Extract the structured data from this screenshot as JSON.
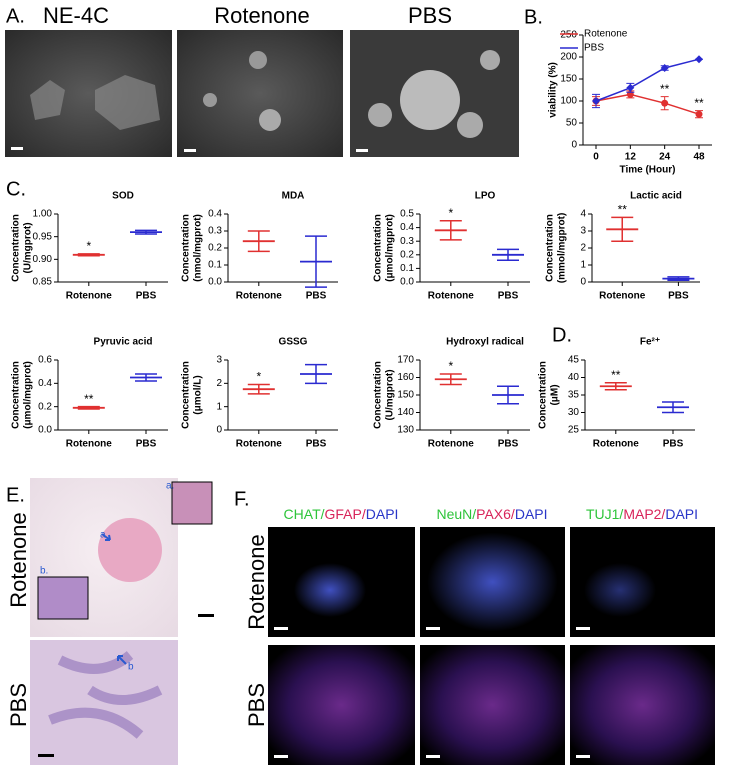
{
  "figure": {
    "panel_labels": [
      "A.",
      "B.",
      "C.",
      "D.",
      "E.",
      "F."
    ],
    "a_titles": [
      "NE-4C",
      "Rotenone",
      "PBS"
    ],
    "e_rows": [
      "Rotenone",
      "PBS"
    ],
    "e_marks": [
      "a.",
      "b.",
      "a",
      "b"
    ],
    "f_headers": [
      [
        {
          "text": "CHAT/",
          "color": "#2ec43a"
        },
        {
          "text": "GFAP/",
          "color": "#d8245a"
        },
        {
          "text": "DAPI",
          "color": "#2a36c8"
        }
      ],
      [
        {
          "text": "NeuN/",
          "color": "#2ec43a"
        },
        {
          "text": "PAX6/",
          "color": "#d8245a"
        },
        {
          "text": "DAPI",
          "color": "#2a36c8"
        }
      ],
      [
        {
          "text": "TUJ1/",
          "color": "#2ec43a"
        },
        {
          "text": "MAP2/",
          "color": "#d8245a"
        },
        {
          "text": "DAPI",
          "color": "#2a36c8"
        }
      ]
    ],
    "f_rows": [
      "Rotenone",
      "PBS"
    ]
  },
  "chart_data": [
    {
      "type": "line",
      "xlabel": "Time (Hour)",
      "ylabel": "viability (%)",
      "categories": [
        "0",
        "12",
        "24",
        "48"
      ],
      "ylim": [
        0,
        250
      ],
      "yticks": [
        0,
        50,
        100,
        150,
        200,
        250
      ],
      "legend": "top-left",
      "series": [
        {
          "name": "Rotenone",
          "color": "#e03030",
          "marker": "circle",
          "values": [
            100,
            115,
            95,
            70
          ],
          "errors": [
            10,
            8,
            15,
            8
          ],
          "annotations": [
            null,
            null,
            "**",
            "**"
          ]
        },
        {
          "name": "PBS",
          "color": "#2a2ad0",
          "marker": "diamond",
          "values": [
            100,
            130,
            175,
            195
          ],
          "errors": [
            15,
            10,
            5,
            0
          ],
          "annotations": [
            null,
            null,
            null,
            null
          ]
        }
      ]
    },
    {
      "type": "errorbar",
      "title": "SOD",
      "ylabel": [
        "Concentration",
        "(U/mgprot)"
      ],
      "categories": [
        "Rotenone",
        "PBS"
      ],
      "colors": [
        "#e03030",
        "#2a2ad0"
      ],
      "values": [
        0.91,
        0.96
      ],
      "errors": [
        0.002,
        0.004
      ],
      "significance": [
        "*",
        null
      ],
      "ylim": [
        0.85,
        1.0
      ],
      "yticks": [
        0.85,
        {
          "value": 0.9,
          "label": "0.90"
        },
        0.95,
        {
          "value": 1.0,
          "label": "1.00"
        }
      ]
    },
    {
      "type": "errorbar",
      "title": "MDA",
      "ylabel": [
        "Concentration",
        "(nmol/mgprot)"
      ],
      "categories": [
        "Rotenone",
        "PBS"
      ],
      "colors": [
        "#e03030",
        "#2a2ad0"
      ],
      "values": [
        0.24,
        0.12
      ],
      "errors": [
        0.06,
        0.15
      ],
      "significance": [
        null,
        null
      ],
      "ylim": [
        0,
        0.4
      ],
      "yticks": [
        {
          "value": 0,
          "label": "0.0"
        },
        0.1,
        0.2,
        0.3,
        0.4
      ]
    },
    {
      "type": "errorbar",
      "title": "LPO",
      "ylabel": [
        "Concentration",
        "(μmol/mgprot)"
      ],
      "categories": [
        "Rotenone",
        "PBS"
      ],
      "colors": [
        "#e03030",
        "#2a2ad0"
      ],
      "values": [
        0.38,
        0.2
      ],
      "errors": [
        0.07,
        0.04
      ],
      "significance": [
        "*",
        null
      ],
      "ylim": [
        0,
        0.5
      ],
      "yticks": [
        {
          "value": 0,
          "label": "0.0"
        },
        0.1,
        0.2,
        0.3,
        0.4,
        0.5
      ]
    },
    {
      "type": "errorbar",
      "title": "Lactic acid",
      "ylabel": [
        "Concentration",
        "(mmol/mgprot)"
      ],
      "categories": [
        "Rotenone",
        "PBS"
      ],
      "colors": [
        "#e03030",
        "#2a2ad0"
      ],
      "values": [
        3.1,
        0.2
      ],
      "errors": [
        0.7,
        0.1
      ],
      "significance": [
        "**",
        null
      ],
      "ylim": [
        0,
        4
      ],
      "yticks": [
        0,
        1,
        2,
        3,
        4
      ]
    },
    {
      "type": "errorbar",
      "title": "Pyruvic acid",
      "ylabel": [
        "Concentration",
        "(μmol/mgprot)"
      ],
      "categories": [
        "Rotenone",
        "PBS"
      ],
      "colors": [
        "#e03030",
        "#2a2ad0"
      ],
      "values": [
        0.19,
        0.45
      ],
      "errors": [
        0.01,
        0.03
      ],
      "significance": [
        "**",
        null
      ],
      "ylim": [
        0,
        0.6
      ],
      "yticks": [
        {
          "value": 0,
          "label": "0.0"
        },
        0.2,
        0.4,
        0.6
      ]
    },
    {
      "type": "errorbar",
      "title": "GSSG",
      "ylabel": [
        "Concentration",
        "(μmol/L)"
      ],
      "categories": [
        "Rotenone",
        "PBS"
      ],
      "colors": [
        "#e03030",
        "#2a2ad0"
      ],
      "values": [
        1.75,
        2.4
      ],
      "errors": [
        0.2,
        0.4
      ],
      "significance": [
        "*",
        null
      ],
      "ylim": [
        0,
        3
      ],
      "yticks": [
        0,
        1,
        2,
        3
      ]
    },
    {
      "type": "errorbar",
      "title": "Hydroxyl radical",
      "ylabel": [
        "Concentration",
        "(U/mgprot)"
      ],
      "categories": [
        "Rotenone",
        "PBS"
      ],
      "colors": [
        "#e03030",
        "#2a2ad0"
      ],
      "values": [
        159,
        150
      ],
      "errors": [
        3,
        5
      ],
      "significance": [
        "*",
        null
      ],
      "ylim": [
        130,
        170
      ],
      "yticks": [
        130,
        140,
        150,
        160,
        170
      ]
    },
    {
      "type": "errorbar",
      "title": "Fe²⁺",
      "ylabel": [
        "Concentration",
        "(μM)"
      ],
      "categories": [
        "Rotenone",
        "PBS"
      ],
      "colors": [
        "#e03030",
        "#2a2ad0"
      ],
      "values": [
        37.5,
        31.5
      ],
      "errors": [
        1,
        1.5
      ],
      "significance": [
        "**",
        null
      ],
      "ylim": [
        25,
        45
      ],
      "yticks": [
        25,
        30,
        35,
        40,
        45
      ]
    }
  ]
}
